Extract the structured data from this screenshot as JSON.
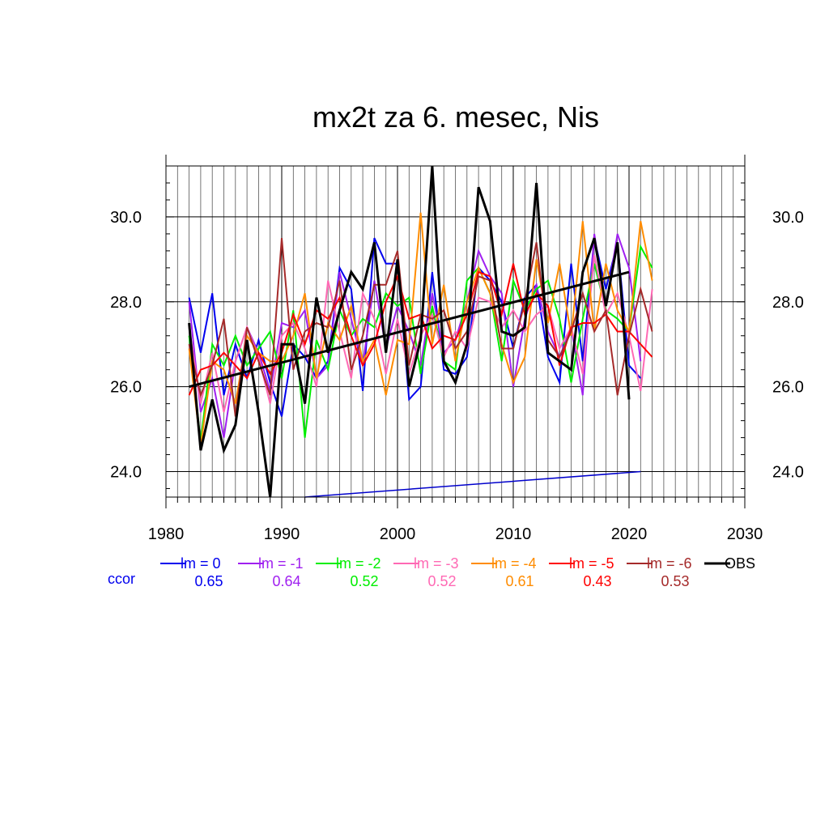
{
  "chart_data": {
    "type": "line",
    "title": "mx2t za 6. mesec, Nis",
    "xlabel": "",
    "ylabel": "",
    "xlim": [
      1980,
      2030
    ],
    "ylim": [
      23.4,
      31.2
    ],
    "x_ticks": [
      "1980",
      "1990",
      "2000",
      "2010",
      "2020",
      "2030"
    ],
    "y_ticks": [
      "24.0",
      "26.0",
      "28.0",
      "30.0"
    ],
    "grid": true,
    "legend_position": "bottom",
    "ccor_label": "ccor",
    "series": [
      {
        "name": "lm = 0",
        "color": "#0000ee",
        "ccor": "0.65",
        "x_start": 1982,
        "values": [
          28.1,
          26.8,
          28.2,
          25.8,
          27.0,
          26.2,
          27.1,
          26.1,
          25.3,
          27.0,
          26.7,
          26.2,
          26.6,
          28.8,
          28.3,
          25.9,
          29.5,
          28.9,
          28.9,
          25.7,
          26.0,
          28.7,
          26.4,
          26.3,
          26.7,
          28.8,
          28.5,
          28.0,
          26.9,
          28.1,
          28.4,
          26.7,
          26.1,
          28.9,
          26.6,
          29.5,
          28.3,
          29.4,
          26.5,
          26.2
        ]
      },
      {
        "name": "lm = -1",
        "color": "#a020f0",
        "ccor": "0.64",
        "x_start": 1982,
        "values": [
          28.0,
          25.4,
          26.2,
          24.8,
          26.6,
          27.4,
          26.8,
          25.9,
          27.5,
          27.4,
          27.8,
          26.2,
          26.5,
          28.7,
          27.6,
          26.5,
          28.5,
          26.9,
          27.9,
          27.3,
          26.5,
          28.2,
          26.8,
          27.1,
          28.0,
          29.2,
          28.6,
          28.2,
          26.0,
          27.6,
          28.4,
          27.3,
          26.7,
          27.4,
          25.8,
          29.6,
          27.9,
          29.6,
          28.8,
          26.6
        ]
      },
      {
        "name": "lm = -2",
        "color": "#00ee00",
        "ccor": "0.52",
        "x_start": 1982,
        "values": [
          27.2,
          24.7,
          27.0,
          26.5,
          27.2,
          26.5,
          26.9,
          27.3,
          26.2,
          27.8,
          24.8,
          27.1,
          26.4,
          27.8,
          27.2,
          27.6,
          27.4,
          28.2,
          27.9,
          28.1,
          26.3,
          27.9,
          26.6,
          26.4,
          28.5,
          28.8,
          28.2,
          26.6,
          28.5,
          27.8,
          28.3,
          28.5,
          27.6,
          26.1,
          27.6,
          28.9,
          27.8,
          27.6,
          27.3,
          29.3,
          28.8
        ]
      },
      {
        "name": "lm = -3",
        "color": "#ff69b4",
        "ccor": "0.52",
        "x_start": 1982,
        "values": [
          27.4,
          25.6,
          26.8,
          25.4,
          26.6,
          27.4,
          26.7,
          25.6,
          27.2,
          27.5,
          26.9,
          26.0,
          28.5,
          27.3,
          26.2,
          28.2,
          27.6,
          26.3,
          27.6,
          26.3,
          27.2,
          27.7,
          26.7,
          27.3,
          26.9,
          28.1,
          28.0,
          27.4,
          27.8,
          27.3,
          27.7,
          27.9,
          26.9,
          27.4,
          26.3,
          29.1,
          27.7,
          28.2,
          27.2,
          25.9,
          28.3
        ]
      },
      {
        "name": "lm = -4",
        "color": "#ff8c00",
        "ccor": "0.61",
        "x_start": 1982,
        "values": [
          26.9,
          24.6,
          26.6,
          26.4,
          25.6,
          27.2,
          26.8,
          26.6,
          26.6,
          27.2,
          28.2,
          26.2,
          27.5,
          27.1,
          27.9,
          26.6,
          27.1,
          25.8,
          27.1,
          27.0,
          30.1,
          27.0,
          28.4,
          26.6,
          28.0,
          28.8,
          28.2,
          27.0,
          26.1,
          26.7,
          29.0,
          27.5,
          28.9,
          27.2,
          29.9,
          27.3,
          28.9,
          27.8,
          27.3,
          29.9,
          28.5
        ]
      },
      {
        "name": "lm = -5",
        "color": "#ff0000",
        "ccor": "0.43",
        "x_start": 1982,
        "values": [
          25.8,
          26.4,
          26.5,
          26.8,
          26.5,
          26.2,
          26.8,
          26.3,
          26.8,
          27.7,
          27.0,
          27.8,
          27.6,
          28.1,
          27.2,
          26.5,
          27.0,
          28.0,
          28.6,
          27.6,
          27.7,
          26.9,
          27.2,
          27.1,
          27.7,
          28.7,
          28.6,
          27.7,
          28.9,
          27.7,
          28.2,
          27.9,
          26.5,
          27.4,
          27.5,
          27.5,
          27.7,
          27.3,
          27.3,
          27.0,
          26.7
        ]
      },
      {
        "name": "lm = -6",
        "color": "#a52a2a",
        "ccor": "0.53",
        "x_start": 1982,
        "values": [
          27.0,
          25.8,
          26.5,
          27.6,
          25.3,
          27.4,
          26.6,
          25.8,
          29.5,
          26.4,
          27.3,
          27.5,
          27.4,
          28.5,
          26.4,
          27.2,
          28.4,
          28.4,
          29.2,
          26.5,
          27.7,
          27.6,
          27.8,
          26.9,
          27.3,
          28.6,
          28.5,
          26.9,
          26.9,
          28.0,
          29.4,
          27.1,
          26.7,
          27.3,
          28.2,
          27.3,
          27.8,
          25.8,
          27.2,
          28.3,
          27.3
        ]
      },
      {
        "name": "OBS",
        "color": "#000000",
        "ccor": "",
        "x_start": 1982,
        "values": [
          27.5,
          24.5,
          25.7,
          24.5,
          25.1,
          27.1,
          25.4,
          23.4,
          27.0,
          27.0,
          25.6,
          28.1,
          26.8,
          27.8,
          28.7,
          28.3,
          29.4,
          26.8,
          29.0,
          26.0,
          27.1,
          31.2,
          26.6,
          26.1,
          27.0,
          30.7,
          29.9,
          27.3,
          27.2,
          27.4,
          30.8,
          26.8,
          26.6,
          26.4,
          28.7,
          29.5,
          27.9,
          29.4,
          25.7
        ]
      }
    ],
    "trend_line": {
      "x": [
        1982,
        2020
      ],
      "y": [
        26.0,
        28.7
      ],
      "color": "#000000"
    },
    "extra_line": {
      "x": [
        1992,
        2021
      ],
      "y": [
        23.4,
        24.0
      ],
      "color": "#0000cc"
    }
  }
}
